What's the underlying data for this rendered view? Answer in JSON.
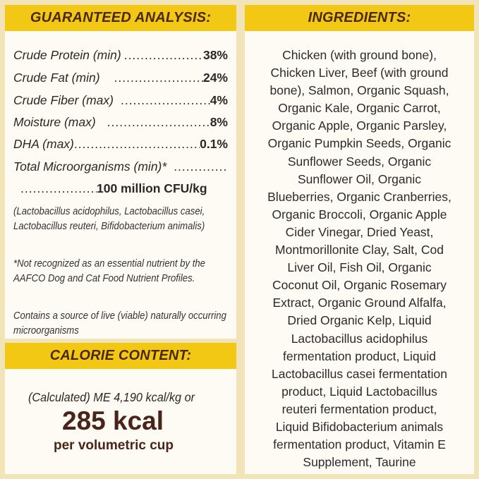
{
  "colors": {
    "background": "#f0e4b8",
    "panel": "#fdfbf3",
    "header": "#f2c814",
    "header_text": "#4a2812",
    "calorie_text": "#4a2418"
  },
  "analysis": {
    "title": "GUARANTEED ANALYSIS:",
    "rows": [
      {
        "label": "Crude Protein (min)",
        "value": "38%"
      },
      {
        "label": "Crude Fat (min)",
        "value": "24%"
      },
      {
        "label": "Crude Fiber (max)",
        "value": "4%"
      },
      {
        "label": "Moisture (max)",
        "value": "8%"
      },
      {
        "label": "DHA (max)",
        "value": "0.1%"
      },
      {
        "label": "Total Microorganisms (min)*",
        "value": ""
      },
      {
        "label": "",
        "value": "100 million CFU/kg"
      }
    ],
    "notes": [
      "(Lactobacillus acidophilus, Lactobacillus casei, Lactobacillus reuteri, Bifidobacterium animalis)",
      "*Not recognized as an essential nutrient by the AAFCO Dog and Cat Food Nutrient Profiles.",
      "Contains a source of live (viable) naturally occurring microorganisms"
    ]
  },
  "calorie": {
    "title": "CALORIE CONTENT:",
    "calculated": "(Calculated) ME 4,190 kcal/kg or",
    "kcal": "285 kcal",
    "per": "per volumetric cup"
  },
  "ingredients": {
    "title": "INGREDIENTS:",
    "lines": [
      "Chicken (with ground bone),",
      "Chicken Liver, Beef (with ground",
      "bone), Salmon, Organic Squash,",
      "Organic Kale, Organic Carrot,",
      "Organic Apple, Organic Parsley,",
      "Organic Pumpkin Seeds, Organic",
      "Sunflower Seeds, Organic",
      "Sunflower Oil, Organic",
      "Blueberries, Organic Cranberries,",
      "Organic Broccoli, Organic Apple",
      "Cider Vinegar, Dried Yeast,",
      "Montmorillonite Clay, Salt, Cod",
      "Liver Oil, Fish Oil, Organic",
      "Coconut Oil, Organic Rosemary",
      "Extract, Organic Ground Alfalfa,",
      "Dried Organic Kelp, Liquid",
      "Lactobacillus acidophilus",
      "fermentation product, Liquid",
      "Lactobacillus casei fermentation",
      "product, Liquid Lactobacillus",
      "reuteri fermentation product,",
      "Liquid Bifidobacterium animals",
      "fermentation product, Vitamin E",
      "Supplement, Taurine"
    ]
  }
}
